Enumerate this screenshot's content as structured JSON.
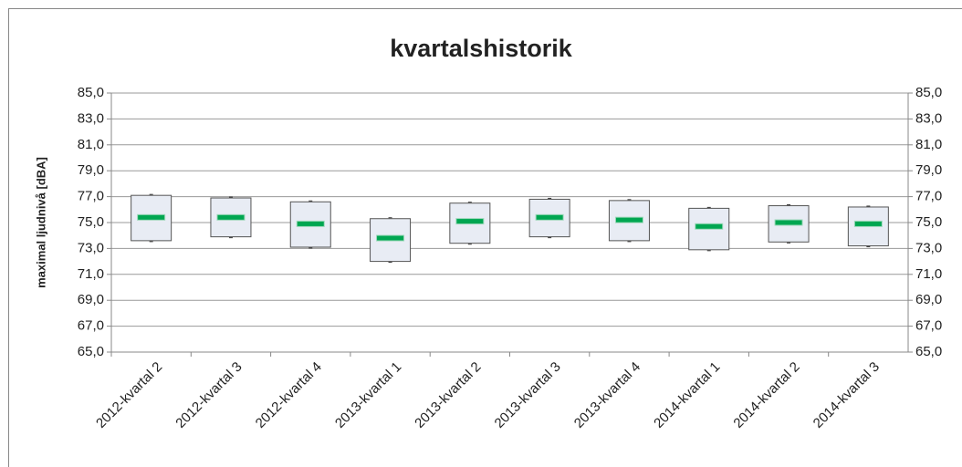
{
  "chart_data": {
    "type": "box",
    "title": "kvartalshistorik",
    "y_label": "maximal ljudnivå [dBA]",
    "categories": [
      "2012-kvartal 2",
      "2012-kvartal 3",
      "2012-kvartal 4",
      "2013-kvartal 1",
      "2013-kvartal 2",
      "2013-kvartal 3",
      "2013-kvartal 4",
      "2014-kvartal 1",
      "2014-kvartal 2",
      "2014-kvartal 3"
    ],
    "low": [
      73.6,
      73.9,
      73.1,
      72.0,
      73.4,
      73.9,
      73.6,
      72.9,
      73.5,
      73.2
    ],
    "high": [
      77.1,
      76.9,
      76.6,
      75.3,
      76.5,
      76.8,
      76.7,
      76.1,
      76.3,
      76.2
    ],
    "median": [
      75.4,
      75.4,
      74.9,
      73.8,
      75.1,
      75.4,
      75.2,
      74.7,
      75.0,
      74.9
    ],
    "box_color": "#e8ecf4",
    "median_color": "#00a651",
    "ylim": [
      65,
      85
    ],
    "yticks": [
      {
        "value": 65,
        "label": "65,0"
      },
      {
        "value": 67,
        "label": "67,0"
      },
      {
        "value": 69,
        "label": "69,0"
      },
      {
        "value": 71,
        "label": "71,0"
      },
      {
        "value": 73,
        "label": "73,0"
      },
      {
        "value": 75,
        "label": "75,0"
      },
      {
        "value": 77,
        "label": "77,0"
      },
      {
        "value": 79,
        "label": "79,0"
      },
      {
        "value": 81,
        "label": "81,0"
      },
      {
        "value": 83,
        "label": "83,0"
      },
      {
        "value": 85,
        "label": "85,0"
      }
    ],
    "y2lim": [
      65,
      85
    ],
    "y2ticks": [
      {
        "value": 65,
        "label": "65,0"
      },
      {
        "value": 67,
        "label": "67,0"
      },
      {
        "value": 69,
        "label": "69,0"
      },
      {
        "value": 71,
        "label": "71,0"
      },
      {
        "value": 73,
        "label": "73,0"
      },
      {
        "value": 75,
        "label": "75,0"
      },
      {
        "value": 77,
        "label": "77,0"
      },
      {
        "value": 79,
        "label": "79,0"
      },
      {
        "value": 81,
        "label": "81,0"
      },
      {
        "value": 83,
        "label": "83,0"
      },
      {
        "value": 85,
        "label": "85,0"
      }
    ],
    "grid": true
  }
}
